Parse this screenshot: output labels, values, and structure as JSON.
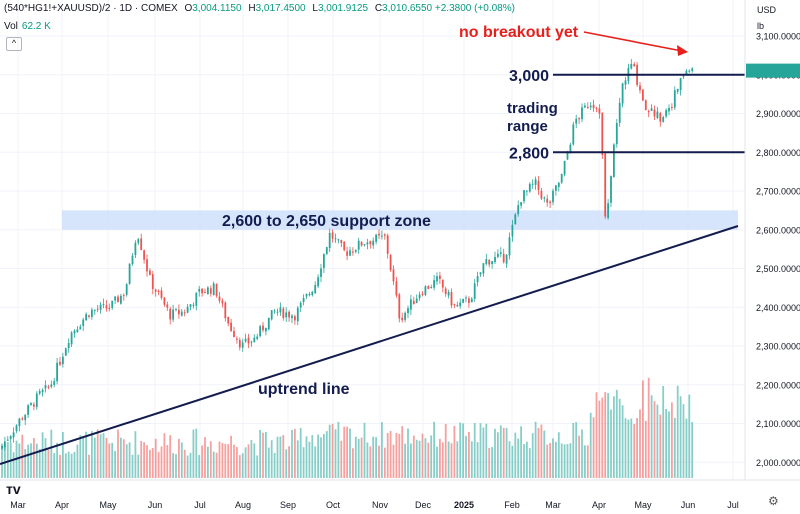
{
  "header": {
    "symbol": "(540*HG1!+XAUUSD)/2 · 1D · COMEX",
    "open_label": "O",
    "open": "3,004.1150",
    "high_label": "H",
    "high": "3,017.4500",
    "low_label": "L",
    "low": "3,001.9125",
    "close_label": "C",
    "close": "3,010.6550",
    "change": "+2.3800 (+0.08%)",
    "vol_label": "Vol",
    "vol_value": "62.2 K",
    "collapse_icon": "^"
  },
  "axis": {
    "currency": "USD",
    "unit": "lb"
  },
  "colors": {
    "up": "#26a69a",
    "down": "#ef5350",
    "zone": "#cfe0fb",
    "line": "#131c4e",
    "annotation_red": "#e8201c"
  },
  "chart_data": {
    "type": "candlestick",
    "y_ticks": [
      "3,100.0000",
      "3,000.0000",
      "2,900.0000",
      "2,800.0000",
      "2,700.0000",
      "2,600.0000",
      "2,500.0000",
      "2,400.0000",
      "2,300.0000",
      "2,200.0000",
      "2,100.0000",
      "2,000.0000"
    ],
    "x_ticks": [
      "Mar",
      "Apr",
      "May",
      "Jun",
      "Jul",
      "Aug",
      "Sep",
      "Oct",
      "Nov",
      "Dec",
      "2025",
      "Feb",
      "Mar",
      "Apr",
      "May",
      "Jun",
      "Jul"
    ],
    "ylim": [
      1960,
      3145
    ],
    "close_path": [
      {
        "t": 0,
        "v": 2035
      },
      {
        "t": 20,
        "v": 2110
      },
      {
        "t": 40,
        "v": 2175
      },
      {
        "t": 50,
        "v": 2195
      },
      {
        "t": 70,
        "v": 2330
      },
      {
        "t": 90,
        "v": 2390
      },
      {
        "t": 110,
        "v": 2400
      },
      {
        "t": 125,
        "v": 2440
      },
      {
        "t": 137,
        "v": 2600
      },
      {
        "t": 150,
        "v": 2470
      },
      {
        "t": 170,
        "v": 2380
      },
      {
        "t": 185,
        "v": 2390
      },
      {
        "t": 200,
        "v": 2440
      },
      {
        "t": 215,
        "v": 2450
      },
      {
        "t": 228,
        "v": 2360
      },
      {
        "t": 242,
        "v": 2300
      },
      {
        "t": 255,
        "v": 2320
      },
      {
        "t": 275,
        "v": 2390
      },
      {
        "t": 295,
        "v": 2380
      },
      {
        "t": 315,
        "v": 2460
      },
      {
        "t": 330,
        "v": 2590
      },
      {
        "t": 345,
        "v": 2540
      },
      {
        "t": 365,
        "v": 2570
      },
      {
        "t": 385,
        "v": 2580
      },
      {
        "t": 400,
        "v": 2370
      },
      {
        "t": 420,
        "v": 2440
      },
      {
        "t": 438,
        "v": 2470
      },
      {
        "t": 455,
        "v": 2400
      },
      {
        "t": 470,
        "v": 2420
      },
      {
        "t": 485,
        "v": 2520
      },
      {
        "t": 505,
        "v": 2530
      },
      {
        "t": 520,
        "v": 2680
      },
      {
        "t": 535,
        "v": 2720
      },
      {
        "t": 548,
        "v": 2660
      },
      {
        "t": 562,
        "v": 2740
      },
      {
        "t": 575,
        "v": 2880
      },
      {
        "t": 590,
        "v": 2930
      },
      {
        "t": 600,
        "v": 2910
      },
      {
        "t": 606,
        "v": 2590
      },
      {
        "t": 612,
        "v": 2780
      },
      {
        "t": 622,
        "v": 2970
      },
      {
        "t": 632,
        "v": 3030
      },
      {
        "t": 645,
        "v": 2920
      },
      {
        "t": 660,
        "v": 2890
      },
      {
        "t": 672,
        "v": 2930
      },
      {
        "t": 685,
        "v": 3010
      },
      {
        "t": 695,
        "v": 3010
      }
    ],
    "volume_range": [
      0,
      95
    ],
    "annotations": {
      "support_zone": {
        "low": 2600,
        "high": 2650,
        "label": "2,600 to 2,650 support zone"
      },
      "resistance": {
        "value": 3000,
        "label": "3,000"
      },
      "support": {
        "value": 2800,
        "label": "2,800"
      },
      "range_label_1": "trading",
      "range_label_2": "range",
      "trendline_label": "uptrend line",
      "breakout_label": "no breakout yet"
    }
  }
}
